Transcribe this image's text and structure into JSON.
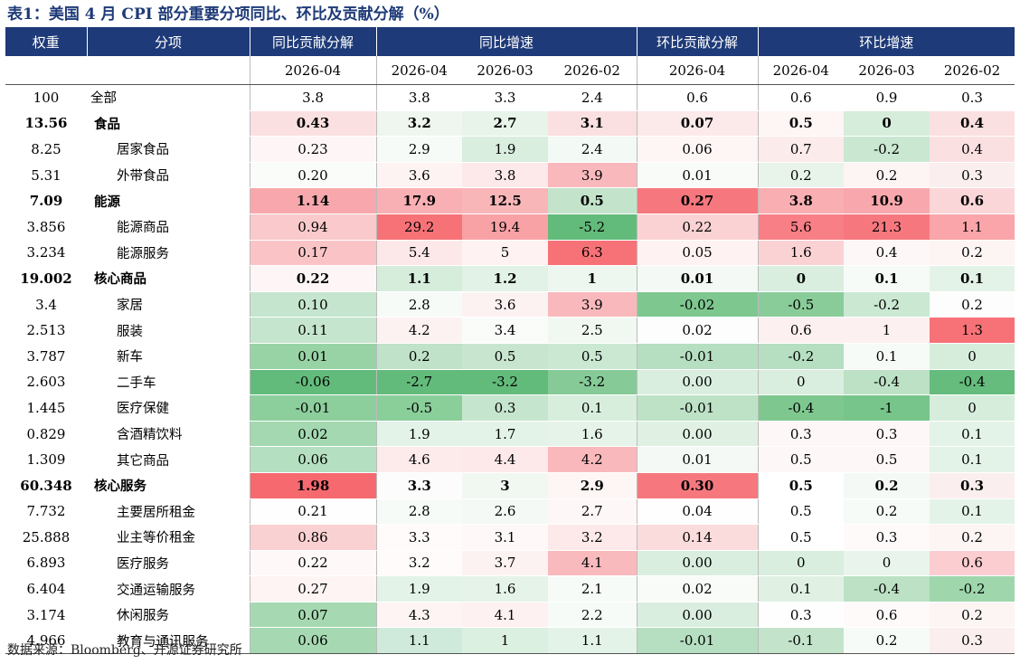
{
  "title": "表1：美国 4 月 CPI 部分重要分项同比、环比及贡献分解（%）",
  "headers": {
    "weight": "权重",
    "item": "分项",
    "yoy_contrib": "同比贡献分解",
    "yoy_growth": "同比增速",
    "mom_contrib": "环比贡献分解",
    "mom_growth": "环比增速"
  },
  "periods": [
    "2026-04",
    "2026-04",
    "2026-03",
    "2026-02",
    "2026-04",
    "2026-04",
    "2026-03",
    "2026-02"
  ],
  "rows": [
    {
      "weight": "100",
      "name": "全部",
      "level": 0,
      "bold": false,
      "cells": [
        "3.8",
        "3.8",
        "3.3",
        "2.4",
        "0.6",
        "0.6",
        "0.9",
        "0.3"
      ],
      "colors": [
        "",
        "",
        "",
        "",
        "",
        "",
        "",
        ""
      ]
    },
    {
      "weight": "13.56",
      "name": "食品",
      "level": 1,
      "bold": true,
      "cells": [
        "0.43",
        "3.2",
        "2.7",
        "3.1",
        "0.07",
        "0.5",
        "0",
        "0.4"
      ],
      "colors": [
        "#fbe0e1",
        "#eef6ef",
        "#e8f4ea",
        "#fbe0e1",
        "#fce9ea",
        "#fef5f5",
        "#d6eddc",
        "#fbe0e1"
      ]
    },
    {
      "weight": "8.25",
      "name": "居家食品",
      "level": 2,
      "bold": false,
      "cells": [
        "0.23",
        "2.9",
        "1.9",
        "2.4",
        "0.06",
        "0.7",
        "-0.2",
        "0.4"
      ],
      "colors": [
        "#fef6f6",
        "#f6fbf7",
        "#d9eedf",
        "#f3f9f4",
        "#fef5f5",
        "#fcebeb",
        "#c9e7d1",
        "#fbe0e1"
      ]
    },
    {
      "weight": "5.31",
      "name": "外带食品",
      "level": 2,
      "bold": false,
      "cells": [
        "0.20",
        "3.6",
        "3.8",
        "3.9",
        "0.01",
        "0.2",
        "0.2",
        "0.3"
      ],
      "colors": [
        "#fafcfa",
        "#fef3f3",
        "#fde9ea",
        "#f9b9bc",
        "#f8fbf8",
        "#e8f4ea",
        "#fdf4f4",
        "#fbeeee"
      ]
    },
    {
      "weight": "7.09",
      "name": "能源",
      "level": 1,
      "bold": true,
      "cells": [
        "1.14",
        "17.9",
        "12.5",
        "0.5",
        "0.27",
        "3.8",
        "10.9",
        "0.6"
      ],
      "colors": [
        "#f8a8ac",
        "#f9b0b4",
        "#f9b6b9",
        "#c3e4cb",
        "#f6787e",
        "#f9aeb2",
        "#f8a8ac",
        "#fbd6d8"
      ]
    },
    {
      "weight": "3.856",
      "name": "能源商品",
      "level": 2,
      "bold": false,
      "cells": [
        "0.94",
        "29.2",
        "19.4",
        "-5.2",
        "0.22",
        "5.6",
        "21.3",
        "1.1"
      ],
      "colors": [
        "#fac9cb",
        "#f77277",
        "#f8a2a6",
        "#63bb7b",
        "#fbd2d4",
        "#f77f85",
        "#f6787e",
        "#f9a5a9"
      ]
    },
    {
      "weight": "3.234",
      "name": "能源服务",
      "level": 2,
      "bold": false,
      "cells": [
        "0.17",
        "5.4",
        "5",
        "6.3",
        "0.05",
        "1.6",
        "0.4",
        "0.2"
      ],
      "colors": [
        "#fac4c6",
        "#fde8e9",
        "#fef2f2",
        "#f77277",
        "#fef2f2",
        "#fbd2d4",
        "#fef7f7",
        "#fdf4f4"
      ]
    },
    {
      "weight": "19.002",
      "name": "核心商品",
      "level": 1,
      "bold": true,
      "cells": [
        "0.22",
        "1.1",
        "1.2",
        "1",
        "0.01",
        "0",
        "0.1",
        "0.1"
      ],
      "colors": [
        "#fef6f6",
        "#d6eddc",
        "#e2f2e6",
        "#edf6ef",
        "#f4f9f5",
        "#d9eedf",
        "#f6fbf7",
        "#e4f3e8"
      ]
    },
    {
      "weight": "3.4",
      "name": "家居",
      "level": 2,
      "bold": false,
      "cells": [
        "0.10",
        "2.8",
        "3.6",
        "3.9",
        "-0.02",
        "-0.5",
        "-0.2",
        "0.2"
      ],
      "colors": [
        "#c6e5ce",
        "#f6fbf7",
        "#fdf2f2",
        "#f9b9bc",
        "#7ec890",
        "#89cc99",
        "#cbe8d3",
        "#fcfdfc"
      ]
    },
    {
      "weight": "2.513",
      "name": "服装",
      "level": 2,
      "bold": false,
      "cells": [
        "0.11",
        "4.2",
        "3.4",
        "2.5",
        "0.02",
        "0.6",
        "1",
        "1.3"
      ],
      "colors": [
        "#c6e5ce",
        "#fdf2f2",
        "#fafcfa",
        "#f1f8f2",
        "#fcfdfc",
        "#fdf0f0",
        "#fdf0f0",
        "#f77277"
      ]
    },
    {
      "weight": "3.787",
      "name": "新车",
      "level": 2,
      "bold": false,
      "cells": [
        "0.01",
        "0.2",
        "0.5",
        "0.5",
        "-0.01",
        "-0.2",
        "0.1",
        "0"
      ],
      "colors": [
        "#98d3a6",
        "#bfe2c8",
        "#c8e6cf",
        "#cbe8d3",
        "#b6dfc1",
        "#b6dfc1",
        "#f6fbf7",
        "#d6eddc"
      ]
    },
    {
      "weight": "2.603",
      "name": "二手车",
      "level": 2,
      "bold": false,
      "cells": [
        "-0.06",
        "-2.7",
        "-3.2",
        "-3.2",
        "0.00",
        "0",
        "-0.4",
        "-0.4"
      ],
      "colors": [
        "#63bb7b",
        "#63bb7b",
        "#63bb7b",
        "#86cb97",
        "#d9eedf",
        "#d9eedf",
        "#bce1c5",
        "#65bc7c"
      ]
    },
    {
      "weight": "1.445",
      "name": "医疗保健",
      "level": 2,
      "bold": false,
      "cells": [
        "-0.01",
        "-0.5",
        "0.3",
        "0.1",
        "-0.01",
        "-0.4",
        "-1",
        "0"
      ],
      "colors": [
        "#8dce9d",
        "#8ace9a",
        "#c6e5ce",
        "#d7eedd",
        "#bde2c6",
        "#7ec890",
        "#78c58b",
        "#d6eddc"
      ]
    },
    {
      "weight": "0.829",
      "name": "含酒精饮料",
      "level": 2,
      "bold": false,
      "cells": [
        "0.02",
        "1.9",
        "1.7",
        "1.6",
        "0.00",
        "0.3",
        "0.3",
        "0.1"
      ],
      "colors": [
        "#a3d8b0",
        "#e4f3e8",
        "#e4f3e8",
        "#e6f3e9",
        "#e0f1e4",
        "#fef7f7",
        "#fef7f7",
        "#e4f3e8"
      ]
    },
    {
      "weight": "1.309",
      "name": "其它商品",
      "level": 2,
      "bold": false,
      "cells": [
        "0.06",
        "4.6",
        "4.4",
        "4.2",
        "0.01",
        "0.5",
        "0.5",
        "0.1"
      ],
      "colors": [
        "#b4dfc0",
        "#fdeaeb",
        "#fde9ea",
        "#f9b9bc",
        "#f4f9f5",
        "#fef7f7",
        "#fef7f7",
        "#e4f3e8"
      ]
    },
    {
      "weight": "60.348",
      "name": "核心服务",
      "level": 1,
      "bold": true,
      "cells": [
        "1.98",
        "3.3",
        "3",
        "2.9",
        "0.30",
        "0.5",
        "0.2",
        "0.3"
      ],
      "colors": [
        "#f6696f",
        "#fbfcfb",
        "#f1f8f2",
        "#fef5f5",
        "#f6787e",
        "#ffffff",
        "#f4f9f5",
        "#fbeeee"
      ]
    },
    {
      "weight": "7.732",
      "name": "主要居所租金",
      "level": 2,
      "bold": false,
      "cells": [
        "0.21",
        "2.8",
        "2.6",
        "2.7",
        "0.04",
        "0.5",
        "0.2",
        "0.1"
      ],
      "colors": [
        "#fffefe",
        "#f6fbf7",
        "#f4f9f5",
        "#fef7f7",
        "#fffefe",
        "#ffffff",
        "#f6fbf7",
        "#e4f3e8"
      ]
    },
    {
      "weight": "25.888",
      "name": "业主等价租金",
      "level": 2,
      "bold": false,
      "cells": [
        "0.86",
        "3.3",
        "3.1",
        "3.2",
        "0.14",
        "0.5",
        "0.3",
        "0.2"
      ],
      "colors": [
        "#fad1d3",
        "#fffbfb",
        "#fef8f8",
        "#fde9ea",
        "#fbdcdd",
        "#ffffff",
        "#fffafa",
        "#fdf4f4"
      ]
    },
    {
      "weight": "6.893",
      "name": "医疗服务",
      "level": 2,
      "bold": false,
      "cells": [
        "0.22",
        "3.2",
        "3.7",
        "4.1",
        "0.00",
        "0",
        "0",
        "0.6"
      ],
      "colors": [
        "#fef8f8",
        "#fffbfb",
        "#fdf2f2",
        "#f9babd",
        "#d9eedf",
        "#d9eedf",
        "#e9f5ec",
        "#fbcdd0"
      ]
    },
    {
      "weight": "6.404",
      "name": "交通运输服务",
      "level": 2,
      "bold": false,
      "cells": [
        "0.27",
        "1.9",
        "1.6",
        "2.1",
        "0.02",
        "0.1",
        "-0.4",
        "-0.2"
      ],
      "colors": [
        "#fef4f4",
        "#e4f3e8",
        "#e6f3e9",
        "#f6fbf7",
        "#f8fbf8",
        "#e0f1e4",
        "#bce1c5",
        "#9fd6ac"
      ]
    },
    {
      "weight": "3.174",
      "name": "休闲服务",
      "level": 2,
      "bold": false,
      "cells": [
        "0.07",
        "4.3",
        "4.1",
        "2.2",
        "0.00",
        "0.3",
        "0.6",
        "0.2"
      ],
      "colors": [
        "#a6d9b2",
        "#fef4f4",
        "#fdf1f1",
        "#f6fbf7",
        "#d9eedf",
        "#fffefe",
        "#fffafa",
        "#fdf4f4"
      ]
    },
    {
      "weight": "4.966",
      "name": "教育与通讯服务",
      "level": 2,
      "bold": false,
      "cells": [
        "0.06",
        "1.1",
        "1",
        "1.1",
        "-0.01",
        "-0.1",
        "0.2",
        "0.3"
      ],
      "colors": [
        "#a6d9b2",
        "#cfeada",
        "#dcf0e1",
        "#e4f3e8",
        "#b6dfc1",
        "#c3e4cb",
        "#f6fbf7",
        "#fbeeee"
      ]
    }
  ],
  "source": "数据来源：Bloomberg、开源证券研究所"
}
